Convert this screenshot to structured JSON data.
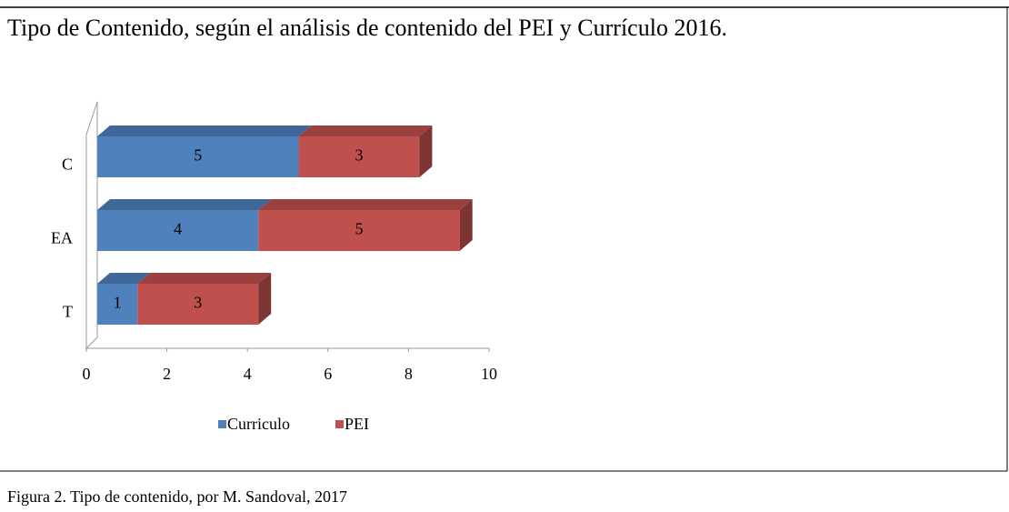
{
  "chart_data": {
    "type": "bar3d_stacked_horizontal",
    "title": "Tipo de Contenido, según el análisis de contenido del PEI y Currículo 2016.",
    "categories": [
      "C",
      "EA",
      "T"
    ],
    "series": [
      {
        "name": "Curriculo",
        "color": "#4f81bd",
        "values": [
          5,
          4,
          1
        ]
      },
      {
        "name": "PEI",
        "color": "#c0504d",
        "values": [
          3,
          5,
          3
        ]
      }
    ],
    "xlim": [
      0,
      10
    ],
    "xticks": [
      0,
      2,
      4,
      6,
      8,
      10
    ],
    "legend": "bottom"
  },
  "caption": "Figura 2. Tipo de contenido, por M. Sandoval, 2017"
}
